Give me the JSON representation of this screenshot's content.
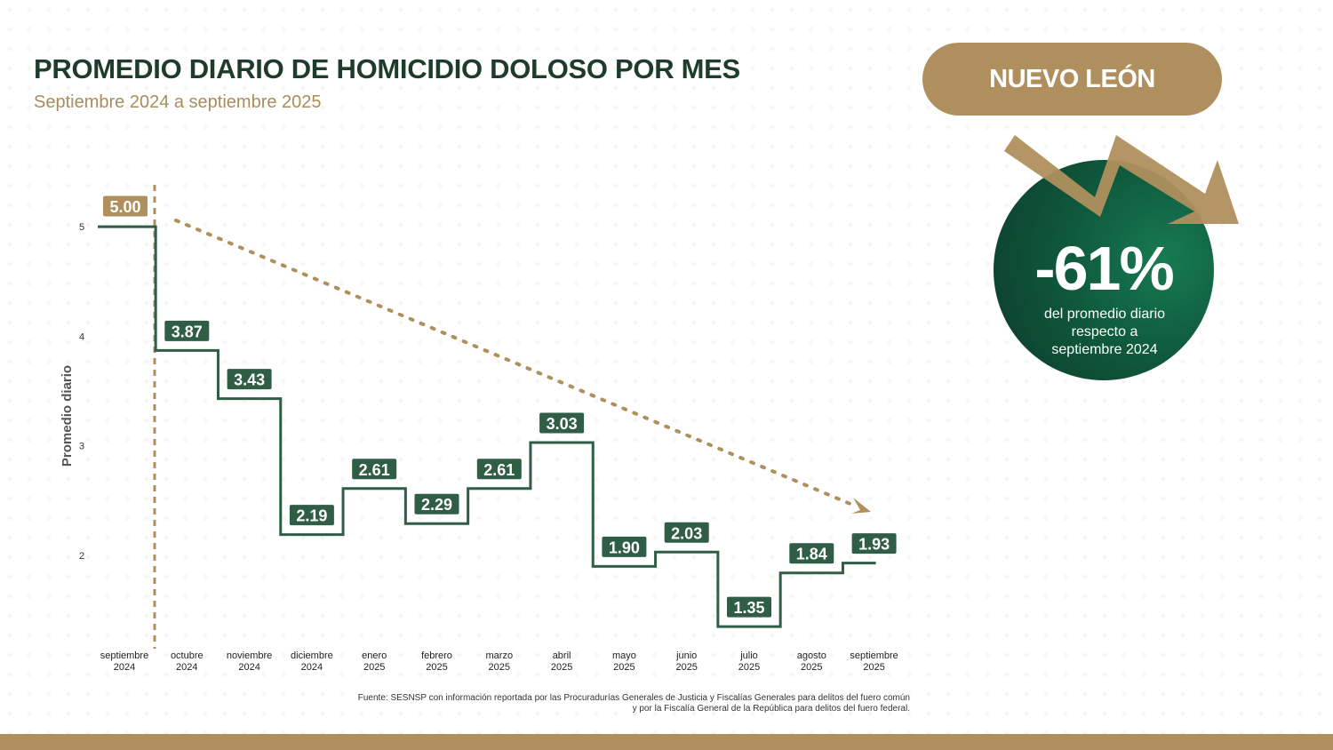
{
  "header": {
    "title": "PROMEDIO DIARIO DE HOMICIDIO DOLOSO POR MES",
    "subtitle": "Septiembre 2024 a septiembre 2025"
  },
  "state": {
    "name": "NUEVO LEÓN"
  },
  "badge": {
    "value": "-61%",
    "caption_lines": [
      "del promedio diario",
      "respecto a",
      "septiembre 2024"
    ]
  },
  "source": {
    "lines": [
      "Fuente: SESNSP con información reportada por las Procuradurías Generales de Justicia y Fiscalías Generales para delitos del fuero común",
      "y por la Fiscalía General de la República para delitos del fuero federal."
    ]
  },
  "colors": {
    "green": "#2f5d46",
    "gold": "#b08f5e",
    "title_green": "#1f3b2e"
  },
  "chart_data": {
    "type": "line",
    "step": true,
    "ylabel": "Promedio diario",
    "ylim": [
      1.8,
      5.0
    ],
    "yticks": [
      2,
      3,
      4,
      5
    ],
    "categories": [
      [
        "septiembre",
        "2024"
      ],
      [
        "octubre",
        "2024"
      ],
      [
        "noviembre",
        "2024"
      ],
      [
        "diciembre",
        "2024"
      ],
      [
        "enero",
        "2025"
      ],
      [
        "febrero",
        "2025"
      ],
      [
        "marzo",
        "2025"
      ],
      [
        "abril",
        "2025"
      ],
      [
        "mayo",
        "2025"
      ],
      [
        "junio",
        "2025"
      ],
      [
        "julio",
        "2025"
      ],
      [
        "agosto",
        "2025"
      ],
      [
        "septiembre",
        "2025"
      ]
    ],
    "values": [
      5.0,
      3.87,
      3.43,
      2.19,
      2.61,
      2.29,
      2.61,
      3.03,
      1.9,
      2.03,
      1.35,
      1.84,
      1.93
    ],
    "labels": [
      "5.00",
      "3.87",
      "3.43",
      "2.19",
      "2.61",
      "2.29",
      "2.61",
      "3.03",
      "1.90",
      "2.03",
      "1.35",
      "1.84",
      "1.93"
    ],
    "trend_line": true
  }
}
